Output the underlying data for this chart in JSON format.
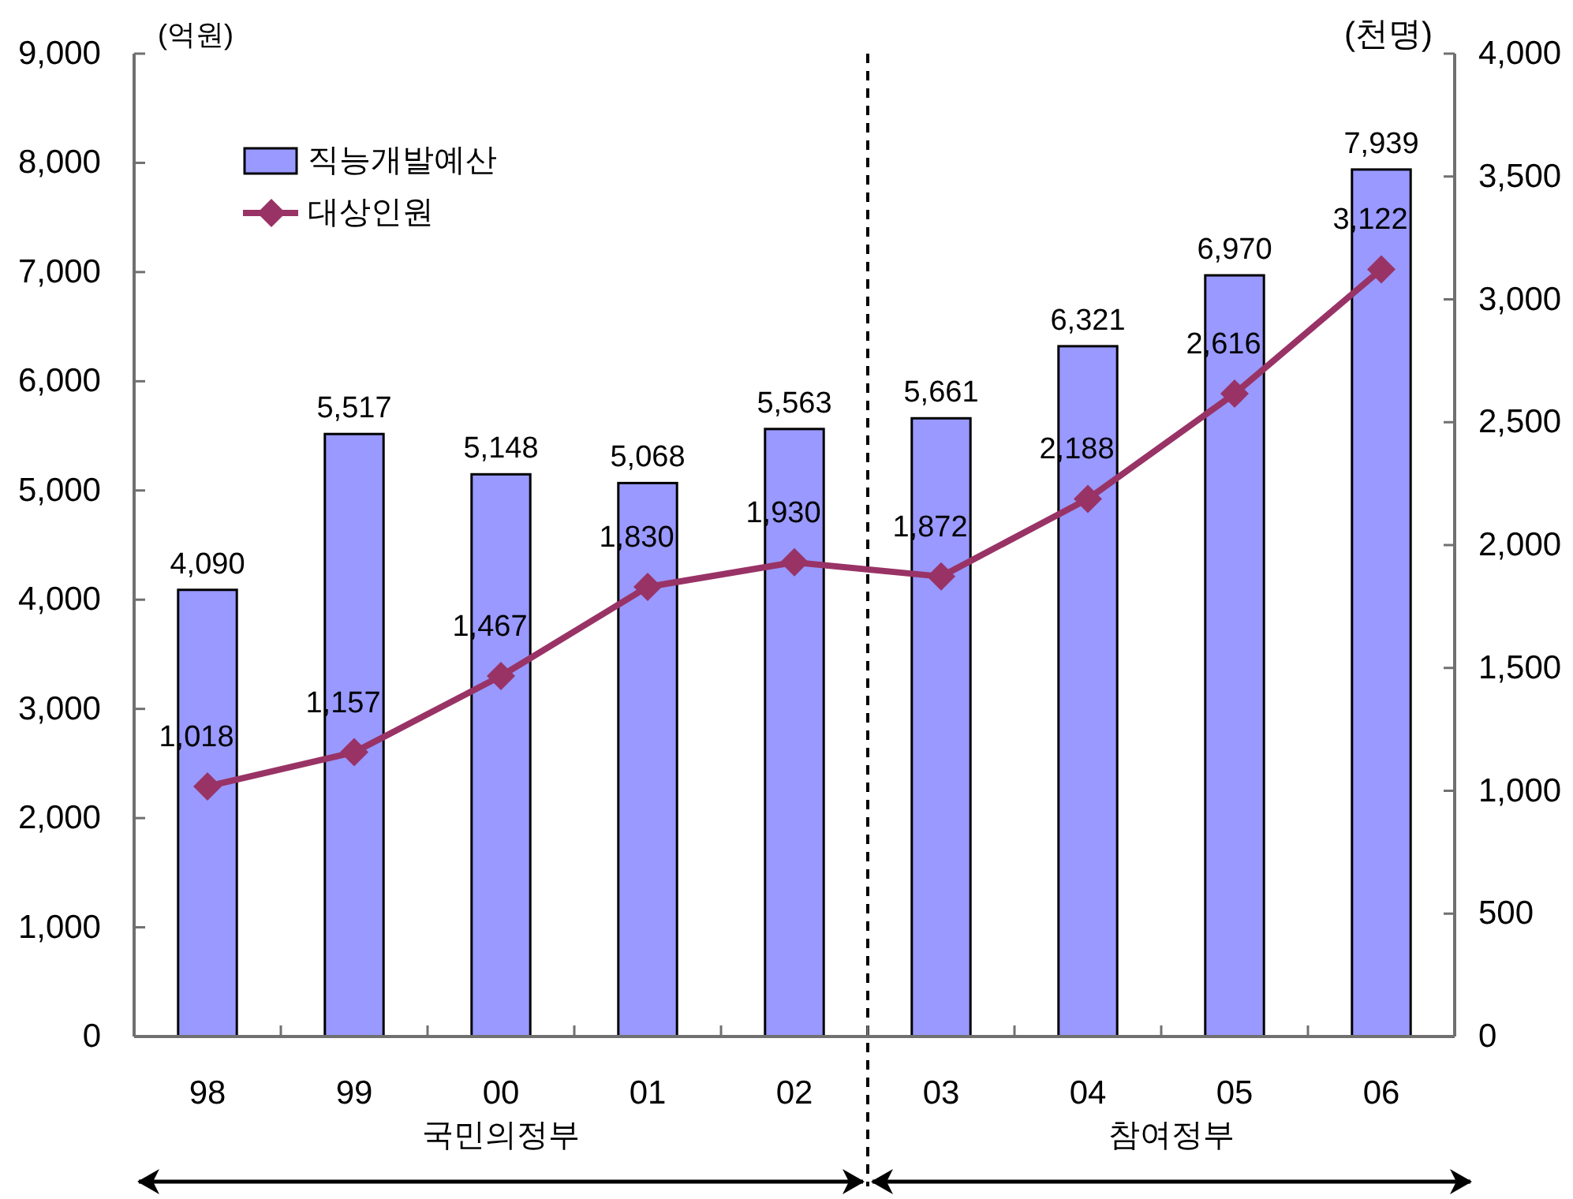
{
  "chart_data": {
    "type": "bar",
    "ylabel": "(억원)",
    "y2label": "(천명)",
    "categories": [
      "98",
      "99",
      "00",
      "01",
      "02",
      "03",
      "04",
      "05",
      "06"
    ],
    "series": [
      {
        "name": "직능개발예산",
        "color": "#9999ff",
        "values": [
          4090,
          5517,
          5148,
          5068,
          5563,
          5661,
          6321,
          6970,
          7939
        ],
        "value_labels": [
          "4,090",
          "5,517",
          "5,148",
          "5,068",
          "5,563",
          "5,661",
          "6,321",
          "6,970",
          "7,939"
        ]
      },
      {
        "name": "대상인원",
        "type": "line",
        "axis": "y2",
        "color": "#993366",
        "marker": "diamond",
        "values": [
          1018,
          1157,
          1467,
          1830,
          1930,
          1872,
          2188,
          2616,
          3122
        ],
        "value_labels": [
          "1,018",
          "1,157",
          "1,467",
          "1,830",
          "1,930",
          "1,872",
          "2,188",
          "2,616",
          "3,122"
        ]
      }
    ],
    "ylim": [
      0,
      9000
    ],
    "yticks": [
      0,
      {
        "value": 1000,
        "label": "1,000"
      },
      {
        "value": 2000,
        "label": "2,000"
      },
      {
        "value": 3000,
        "label": "3,000"
      },
      {
        "value": 4000,
        "label": "4,000"
      },
      {
        "value": 5000,
        "label": "5,000"
      },
      {
        "value": 6000,
        "label": "6,000"
      },
      {
        "value": 7000,
        "label": "7,000"
      },
      {
        "value": 8000,
        "label": "8,000"
      },
      {
        "value": 9000,
        "label": "9,000"
      }
    ],
    "y2lim": [
      0,
      4000
    ],
    "y2ticks": [
      0,
      500,
      {
        "value": 1000,
        "label": "1,000"
      },
      {
        "value": 1500,
        "label": "1,500"
      },
      {
        "value": 2000,
        "label": "2,000"
      },
      {
        "value": 2500,
        "label": "2,500"
      },
      {
        "value": 3000,
        "label": "3,000"
      },
      {
        "value": 3500,
        "label": "3,500"
      },
      {
        "value": 4000,
        "label": "4,000"
      }
    ],
    "legend": "top left",
    "annotations": [
      "국민의정부",
      "참여정부"
    ]
  }
}
